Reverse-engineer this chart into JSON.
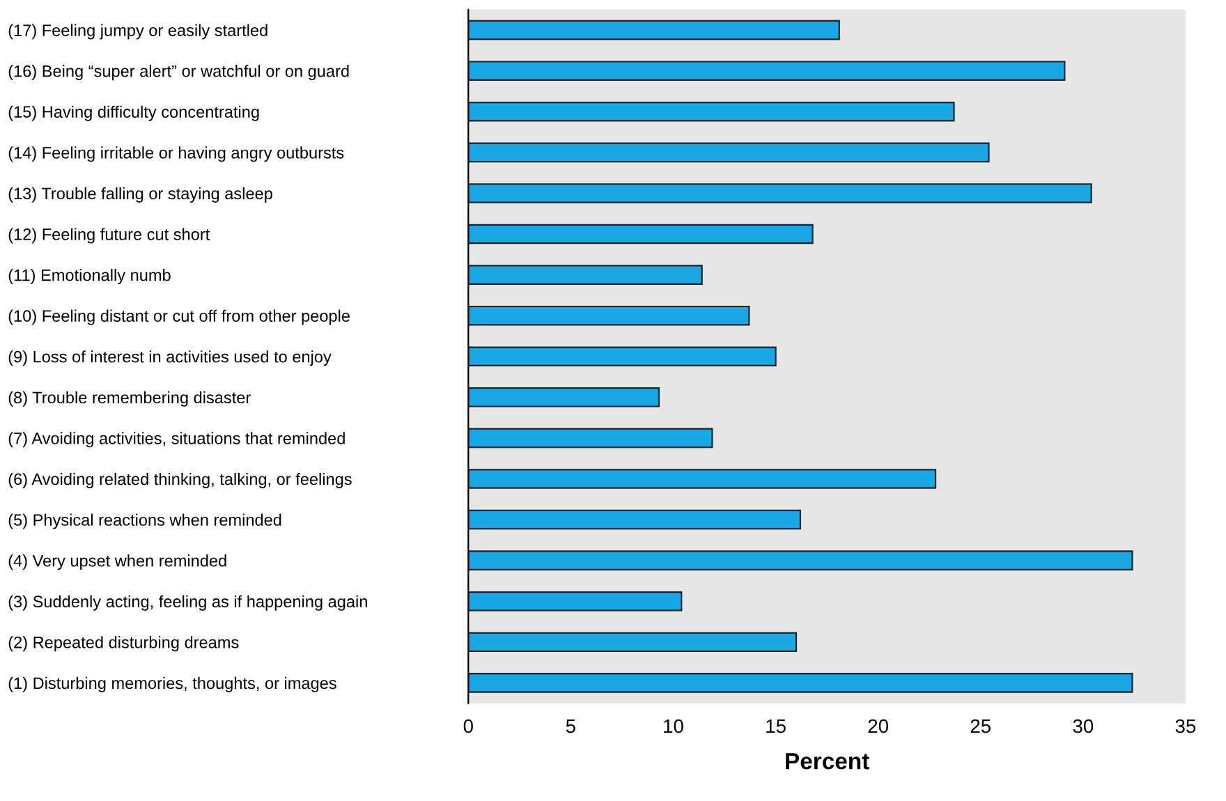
{
  "chart_data": {
    "type": "bar",
    "orientation": "horizontal",
    "xlabel": "Percent",
    "categories": [
      "(17) Feeling jumpy or easily startled",
      "(16) Being “super alert” or watchful or on guard",
      "(15) Having difficulty concentrating",
      "(14) Feeling irritable or having angry outbursts",
      "(13) Trouble falling or staying asleep",
      "(12) Feeling future cut short",
      "(11) Emotionally numb",
      "(10) Feeling distant or cut off from other people",
      "(9) Loss of interest in activities used to enjoy",
      "(8) Trouble remembering disaster",
      "(7) Avoiding activities, situations that reminded",
      "(6) Avoiding related thinking, talking, or feelings",
      "(5) Physical reactions when reminded",
      "(4) Very upset when reminded",
      "(3) Suddenly acting, feeling as if happening again",
      "(2) Repeated disturbing dreams",
      "(1) Disturbing memories, thoughts, or images"
    ],
    "values": [
      18.1,
      29.1,
      23.7,
      25.4,
      30.4,
      16.8,
      11.4,
      13.7,
      15.0,
      9.3,
      11.9,
      22.8,
      16.2,
      32.4,
      10.4,
      16.0,
      32.4
    ],
    "color": "#1aa7e6",
    "xlim": [
      0,
      35
    ],
    "xticks": [
      0,
      5,
      10,
      15,
      20,
      25,
      30,
      35
    ],
    "grid": false,
    "legend": false
  }
}
